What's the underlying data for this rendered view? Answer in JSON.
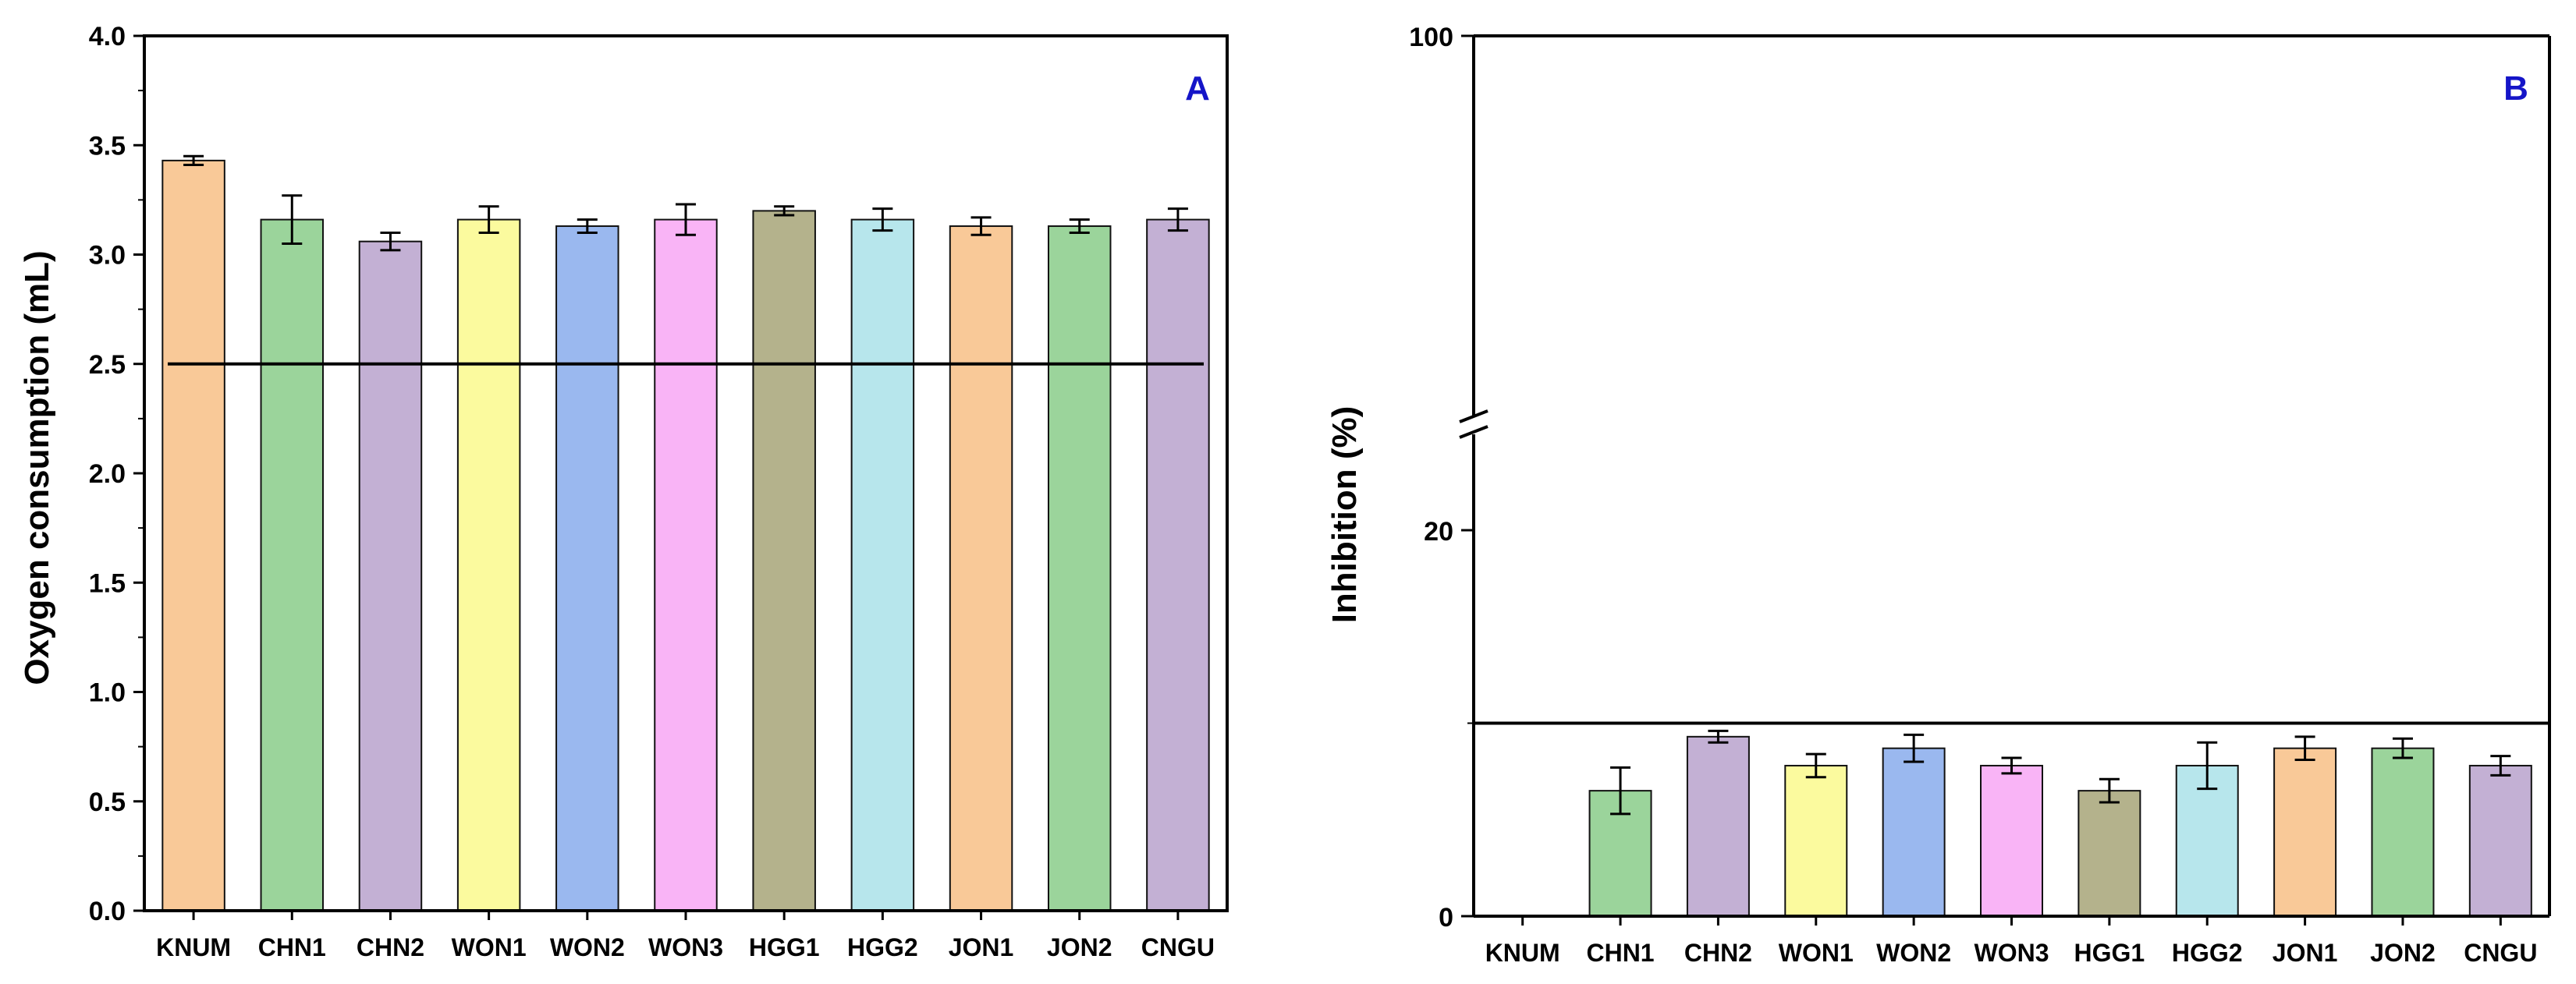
{
  "charts": [
    {
      "type": "bar",
      "panel_label": "A",
      "title": "",
      "xlabel": "",
      "ylabel": "Oxygen consumption (mL)",
      "categories": [
        "KNUM",
        "CHN1",
        "CHN2",
        "WON1",
        "WON2",
        "WON3",
        "HGG1",
        "HGG2",
        "JON1",
        "JON2",
        "CNGU"
      ],
      "values": [
        3.43,
        3.16,
        3.06,
        3.16,
        3.13,
        3.16,
        3.2,
        3.16,
        3.13,
        3.13,
        3.16
      ],
      "errors": [
        0.02,
        0.11,
        0.04,
        0.06,
        0.03,
        0.07,
        0.02,
        0.05,
        0.04,
        0.03,
        0.05
      ],
      "colors": [
        "#f9c998",
        "#9bd49b",
        "#c3b0d4",
        "#fbfa9e",
        "#9ab8ef",
        "#f9b4f6",
        "#b4b28c",
        "#b7e6ec",
        "#f9c998",
        "#9bd49b",
        "#c3b0d4"
      ],
      "ylim": [
        0,
        4.0
      ],
      "yticks": [
        "0.0",
        "0.5",
        "1.0",
        "1.5",
        "2.0",
        "2.5",
        "3.0",
        "3.5",
        "4.0"
      ],
      "reference_line": 2.5,
      "grid": false
    },
    {
      "type": "bar",
      "panel_label": "B",
      "title": "",
      "xlabel": "",
      "ylabel": "Inhibition (%)",
      "categories": [
        "KNUM",
        "CHN1",
        "CHN2",
        "WON1",
        "WON2",
        "WON3",
        "HGG1",
        "HGG2",
        "JON1",
        "JON2",
        "CNGU"
      ],
      "values": [
        0,
        6.5,
        9.3,
        7.8,
        8.7,
        7.8,
        6.5,
        7.8,
        8.7,
        8.7,
        7.8
      ],
      "errors": [
        0,
        1.2,
        0.3,
        0.6,
        0.7,
        0.4,
        0.6,
        1.2,
        0.6,
        0.5,
        0.5
      ],
      "colors": [
        "#f9c998",
        "#9bd49b",
        "#c3b0d4",
        "#fbfa9e",
        "#9ab8ef",
        "#f9b4f6",
        "#b4b28c",
        "#b7e6ec",
        "#f9c998",
        "#9bd49b",
        "#c3b0d4"
      ],
      "yticks": [
        "0",
        "20",
        "100"
      ],
      "axis_break": true,
      "axis_break_range": [
        20,
        100
      ],
      "reference_line": 10,
      "grid": false
    }
  ]
}
